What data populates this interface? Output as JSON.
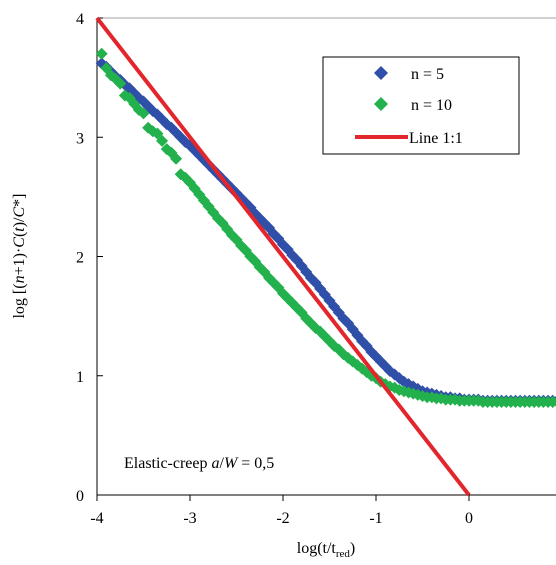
{
  "chart_data": {
    "type": "scatter",
    "xlabel": "log(t/t",
    "xlabel_sub": "red",
    "xlabel_close": ")",
    "ylabel_parts": [
      "log [(",
      "n",
      "+1)·",
      "C",
      "(",
      "t",
      ")/",
      "C",
      "*]"
    ],
    "xlim": [
      -4,
      1
    ],
    "ylim": [
      0,
      4
    ],
    "xticks": [
      -4,
      -3,
      -2,
      -1,
      0
    ],
    "xtick_labels": [
      "-4",
      "-3",
      "-2",
      "-1",
      "0"
    ],
    "yticks": [
      0,
      1,
      2,
      3,
      4
    ],
    "ytick_labels": [
      "0",
      "1",
      "2",
      "3",
      "4"
    ],
    "grid": false,
    "legend_position": "top-right",
    "annotation_parts": [
      "Elastic-creep ",
      "a",
      "/",
      "W",
      " = 0,5"
    ],
    "colors": {
      "n5": "#2f4fa8",
      "n10": "#22b14c",
      "line": "#e3262b",
      "frame": "#a0a0a0"
    },
    "series": [
      {
        "name": "n = 5",
        "marker": "diamond",
        "color": "#2f4fa8",
        "x": [
          -3.95,
          -3.9,
          -3.85,
          -3.8,
          -3.75,
          -3.7,
          -3.65,
          -3.6,
          -3.55,
          -3.5,
          -3.45,
          -3.4,
          -3.35,
          -3.3,
          -3.25,
          -3.2,
          -3.15,
          -3.1,
          -3.05,
          -3.0,
          -2.95,
          -2.9,
          -2.85,
          -2.8,
          -2.75,
          -2.7,
          -2.65,
          -2.6,
          -2.55,
          -2.5,
          -2.45,
          -2.4,
          -2.35,
          -2.3,
          -2.25,
          -2.2,
          -2.15,
          -2.1,
          -2.05,
          -2.0,
          -1.95,
          -1.9,
          -1.85,
          -1.8,
          -1.75,
          -1.7,
          -1.65,
          -1.6,
          -1.55,
          -1.5,
          -1.45,
          -1.4,
          -1.35,
          -1.3,
          -1.25,
          -1.2,
          -1.15,
          -1.1,
          -1.05,
          -1.0,
          -0.95,
          -0.9,
          -0.85,
          -0.8,
          -0.75,
          -0.7,
          -0.65,
          -0.6,
          -0.55,
          -0.5,
          -0.45,
          -0.4,
          -0.35,
          -0.3,
          -0.25,
          -0.2,
          -0.15,
          -0.1,
          -0.05,
          0.0,
          0.05,
          0.1,
          0.15,
          0.2,
          0.25,
          0.3,
          0.35,
          0.4,
          0.45,
          0.5,
          0.55,
          0.6,
          0.65,
          0.7,
          0.75,
          0.8,
          0.85,
          0.9,
          0.95,
          1.0
        ],
        "y": [
          3.62,
          3.59,
          3.55,
          3.51,
          3.48,
          3.44,
          3.41,
          3.37,
          3.33,
          3.3,
          3.26,
          3.22,
          3.19,
          3.15,
          3.11,
          3.08,
          3.04,
          3.0,
          2.96,
          2.93,
          2.89,
          2.85,
          2.81,
          2.77,
          2.73,
          2.69,
          2.65,
          2.61,
          2.57,
          2.53,
          2.49,
          2.45,
          2.41,
          2.36,
          2.32,
          2.28,
          2.24,
          2.19,
          2.15,
          2.1,
          2.06,
          2.01,
          1.97,
          1.92,
          1.87,
          1.82,
          1.78,
          1.73,
          1.68,
          1.63,
          1.58,
          1.53,
          1.48,
          1.44,
          1.39,
          1.34,
          1.29,
          1.25,
          1.2,
          1.16,
          1.12,
          1.08,
          1.04,
          1.01,
          0.98,
          0.95,
          0.93,
          0.91,
          0.89,
          0.87,
          0.86,
          0.85,
          0.84,
          0.83,
          0.82,
          0.82,
          0.81,
          0.81,
          0.8,
          0.8,
          0.8,
          0.8,
          0.79,
          0.79,
          0.79,
          0.79,
          0.79,
          0.79,
          0.79,
          0.79,
          0.79,
          0.79,
          0.79,
          0.79,
          0.79,
          0.79,
          0.79,
          0.79,
          0.79,
          0.79
        ]
      },
      {
        "name": "n = 10",
        "marker": "diamond",
        "color": "#22b14c",
        "x": [
          -3.95,
          -3.9,
          -3.85,
          -3.8,
          -3.75,
          -3.7,
          -3.65,
          -3.6,
          -3.55,
          -3.5,
          -3.45,
          -3.4,
          -3.35,
          -3.3,
          -3.25,
          -3.2,
          -3.15,
          -3.1,
          -3.05,
          -3.0,
          -2.95,
          -2.9,
          -2.85,
          -2.8,
          -2.75,
          -2.7,
          -2.65,
          -2.6,
          -2.55,
          -2.5,
          -2.45,
          -2.4,
          -2.35,
          -2.3,
          -2.25,
          -2.2,
          -2.15,
          -2.1,
          -2.05,
          -2.0,
          -1.95,
          -1.9,
          -1.85,
          -1.8,
          -1.75,
          -1.7,
          -1.65,
          -1.6,
          -1.55,
          -1.5,
          -1.45,
          -1.4,
          -1.35,
          -1.3,
          -1.25,
          -1.2,
          -1.15,
          -1.1,
          -1.05,
          -1.0,
          -0.95,
          -0.9,
          -0.85,
          -0.8,
          -0.75,
          -0.7,
          -0.65,
          -0.6,
          -0.55,
          -0.5,
          -0.45,
          -0.4,
          -0.35,
          -0.3,
          -0.25,
          -0.2,
          -0.15,
          -0.1,
          -0.05,
          0.0,
          0.05,
          0.1,
          0.15,
          0.2,
          0.25,
          0.3,
          0.35,
          0.4,
          0.45,
          0.5,
          0.55,
          0.6,
          0.65,
          0.7,
          0.75,
          0.8,
          0.85,
          0.9,
          0.95,
          1.0
        ],
        "y": [
          3.7,
          3.58,
          3.52,
          3.49,
          3.45,
          3.35,
          3.33,
          3.28,
          3.23,
          3.2,
          3.08,
          3.05,
          3.03,
          2.97,
          2.9,
          2.87,
          2.82,
          2.69,
          2.66,
          2.62,
          2.57,
          2.52,
          2.47,
          2.42,
          2.37,
          2.32,
          2.28,
          2.23,
          2.18,
          2.14,
          2.09,
          2.05,
          2.0,
          1.96,
          1.91,
          1.87,
          1.82,
          1.78,
          1.74,
          1.69,
          1.65,
          1.61,
          1.57,
          1.53,
          1.48,
          1.44,
          1.4,
          1.37,
          1.33,
          1.29,
          1.25,
          1.22,
          1.18,
          1.15,
          1.12,
          1.09,
          1.06,
          1.03,
          1.0,
          0.98,
          0.95,
          0.93,
          0.91,
          0.9,
          0.88,
          0.87,
          0.86,
          0.85,
          0.84,
          0.83,
          0.82,
          0.82,
          0.81,
          0.81,
          0.8,
          0.8,
          0.8,
          0.79,
          0.79,
          0.79,
          0.79,
          0.79,
          0.78,
          0.78,
          0.78,
          0.78,
          0.78,
          0.78,
          0.78,
          0.78,
          0.78,
          0.78,
          0.78,
          0.78,
          0.78,
          0.78,
          0.78,
          0.78,
          0.78,
          0.78
        ]
      },
      {
        "name": "Line 1:1",
        "marker": "line",
        "color": "#e3262b",
        "x": [
          -4,
          0
        ],
        "y": [
          4,
          0
        ]
      }
    ]
  }
}
